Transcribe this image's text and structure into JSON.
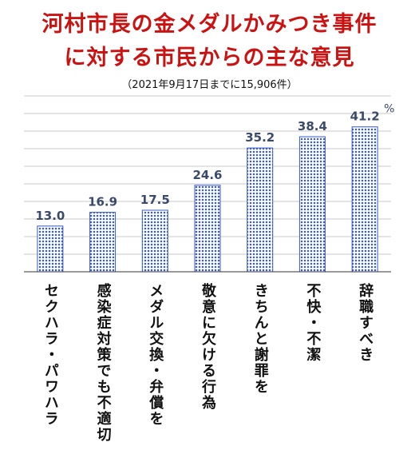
{
  "title_line1": "河村市長の金メダルかみつき事件",
  "title_line2": "に対する市民からの主な意見",
  "subtitle": "（2021年9月17日までに15,906件）",
  "chart_data": {
    "type": "bar",
    "categories": [
      "セクハラ・パワハラ",
      "感染症対策でも不適切",
      "メダル交換・弁償を",
      "敬意に欠ける行為",
      "きちんと謝罪を",
      "不快・不潔",
      "辞職すべき"
    ],
    "values": [
      13.0,
      16.9,
      17.5,
      24.6,
      35.2,
      38.4,
      41.2
    ],
    "value_labels": [
      "13.0",
      "16.9",
      "17.5",
      "24.6",
      "35.2",
      "38.4",
      "41.2"
    ],
    "unit": "%",
    "ylim": [
      0,
      50
    ],
    "grid": true,
    "bar_color": "#3a5bc8"
  }
}
